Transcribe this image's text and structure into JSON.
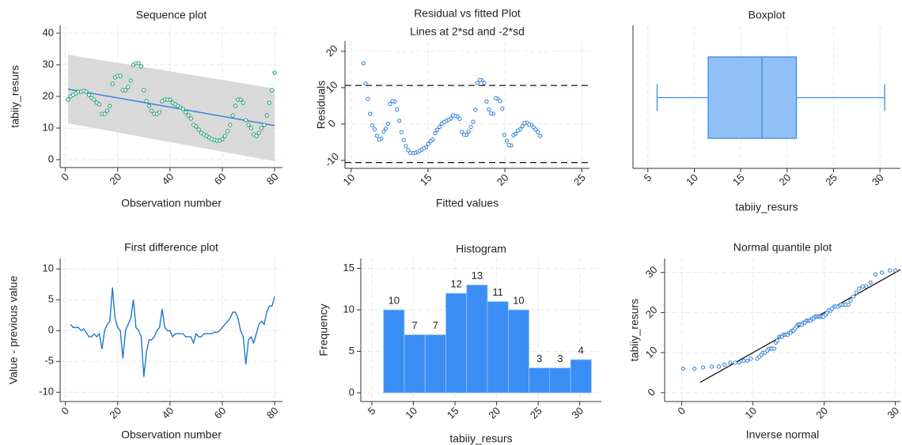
{
  "chart_data": [
    {
      "type": "scatter",
      "title": "Sequence plot",
      "xlabel": "Observation number",
      "ylabel": "tabiiy_resurs",
      "x": [
        1,
        2,
        3,
        4,
        5,
        6,
        7,
        8,
        9,
        10,
        11,
        12,
        13,
        14,
        15,
        16,
        17,
        18,
        19,
        20,
        21,
        22,
        23,
        24,
        25,
        26,
        27,
        28,
        29,
        30,
        31,
        32,
        33,
        34,
        35,
        36,
        37,
        38,
        39,
        40,
        41,
        42,
        43,
        44,
        45,
        46,
        47,
        48,
        49,
        50,
        51,
        52,
        53,
        54,
        55,
        56,
        57,
        58,
        59,
        60,
        61,
        62,
        63,
        64,
        65,
        66,
        67,
        68,
        69,
        70,
        71,
        72,
        73,
        74,
        75,
        76,
        77,
        78,
        79,
        80
      ],
      "values": [
        19,
        20,
        20.5,
        21,
        21.5,
        21.5,
        21.8,
        21.5,
        20.5,
        19.5,
        19,
        18,
        17.5,
        14.5,
        14.5,
        15.5,
        17,
        24,
        26,
        26.5,
        26.5,
        22,
        22,
        23,
        25,
        30,
        30.5,
        30.5,
        29.5,
        22,
        18.5,
        17,
        15.5,
        14.5,
        14.5,
        15,
        18.5,
        19,
        19,
        19,
        18,
        17.5,
        17,
        16.5,
        16,
        15,
        14,
        13,
        11,
        10.5,
        9.5,
        8.5,
        8,
        7.5,
        7,
        6.5,
        6.3,
        6,
        6,
        6.5,
        7.5,
        9,
        11,
        14,
        17,
        19,
        19,
        18,
        12.5,
        11,
        10,
        8,
        7.5,
        8.5,
        10,
        11,
        14,
        18,
        22,
        27.5
      ],
      "color": "#1a9e6e",
      "fit_line": {
        "x": [
          1,
          80
        ],
        "values": [
          22.3,
          10.8
        ],
        "color": "#2a7fdc"
      },
      "ci_band": {
        "x": [
          1,
          80
        ],
        "upper": [
          33.2,
          22.5
        ],
        "lower": [
          11.5,
          -0.5
        ],
        "color": "#d9d9d9"
      },
      "xlim": [
        -2,
        83
      ],
      "ylim": [
        -2.5,
        42.5
      ],
      "xticks": [
        0,
        20,
        40,
        60,
        80
      ],
      "yticks": [
        0,
        10,
        20,
        30,
        40
      ],
      "grid": true
    },
    {
      "type": "scatter",
      "title": "Residual vs fitted Plot",
      "subtitle": "Lines at 2*sd and -2*sd",
      "xlabel": "Fitted values",
      "ylabel": "Residuals",
      "x": [
        22.3,
        22.15,
        22.0,
        21.86,
        21.72,
        21.57,
        21.43,
        21.28,
        21.14,
        20.99,
        20.84,
        20.7,
        20.55,
        20.41,
        20.26,
        20.12,
        19.97,
        19.83,
        19.68,
        19.53,
        19.39,
        19.24,
        19.1,
        18.95,
        18.81,
        18.66,
        18.51,
        18.37,
        18.22,
        18.08,
        17.93,
        17.79,
        17.64,
        17.5,
        17.35,
        17.2,
        17.06,
        16.91,
        16.77,
        16.62,
        16.48,
        16.33,
        16.18,
        16.04,
        15.89,
        15.75,
        15.6,
        15.46,
        15.31,
        15.17,
        15.02,
        14.87,
        14.73,
        14.58,
        14.44,
        14.29,
        14.15,
        14.0,
        13.85,
        13.71,
        13.56,
        13.42,
        13.27,
        13.13,
        12.98,
        12.84,
        12.69,
        12.54,
        12.4,
        12.25,
        12.11,
        11.96,
        11.82,
        11.67,
        11.53,
        11.38,
        11.23,
        11.09,
        10.94,
        10.8
      ],
      "values": [
        -3.3,
        -2.2,
        -1.5,
        -0.9,
        -0.2,
        -0.1,
        0.4,
        0.2,
        -0.6,
        -1.5,
        -1.8,
        -2.7,
        -3.1,
        -5.9,
        -5.8,
        -4.6,
        -3.0,
        4.2,
        6.3,
        7.0,
        7.1,
        2.8,
        2.9,
        4.0,
        6.2,
        11.3,
        12.0,
        12.1,
        11.3,
        3.9,
        0.6,
        -0.8,
        -2.1,
        -3.0,
        -2.9,
        -2.2,
        1.4,
        2.1,
        2.2,
        2.4,
        1.5,
        1.2,
        0.8,
        0.5,
        0.1,
        -0.8,
        -1.6,
        -2.5,
        -4.3,
        -4.7,
        -5.5,
        -6.4,
        -6.7,
        -7.1,
        -7.4,
        -7.8,
        -7.9,
        -8.0,
        -7.9,
        -7.2,
        -6.1,
        -4.4,
        -2.3,
        0.9,
        4.0,
        6.2,
        6.3,
        5.5,
        0.1,
        -1.3,
        -2.1,
        -4.0,
        -4.3,
        -3.2,
        -1.5,
        -0.4,
        2.8,
        6.9,
        11.1,
        16.7
      ],
      "color": "#2d7fd8",
      "reference_lines": [
        10.6,
        -10.6
      ],
      "xlim": [
        9.6,
        25.5
      ],
      "ylim": [
        -12.2,
        22.8
      ],
      "xticks": [
        10,
        15,
        20,
        25
      ],
      "yticks": [
        -10,
        0,
        10,
        20
      ],
      "grid": true
    },
    {
      "type": "box",
      "title": "Boxplot",
      "xlabel": "tabiiy_resurs",
      "whisker_low": 6,
      "q1": 11.5,
      "median": 17.3,
      "q3": 21,
      "whisker_high": 30.5,
      "color": "#90c0f5",
      "edge_color": "#3d8be0",
      "xlim": [
        3.4,
        32.2
      ],
      "xticks": [
        5,
        10,
        15,
        20,
        25,
        30
      ],
      "grid": true
    },
    {
      "type": "line",
      "title": "First difference plot",
      "xlabel": "Observation number",
      "ylabel": "Value - previous value",
      "x": [
        2,
        3,
        4,
        5,
        6,
        7,
        8,
        9,
        10,
        11,
        12,
        13,
        14,
        15,
        16,
        17,
        18,
        19,
        20,
        21,
        22,
        23,
        24,
        25,
        26,
        27,
        28,
        29,
        30,
        31,
        32,
        33,
        34,
        35,
        36,
        37,
        38,
        39,
        40,
        41,
        42,
        43,
        44,
        45,
        46,
        47,
        48,
        49,
        50,
        51,
        52,
        53,
        54,
        55,
        56,
        57,
        58,
        59,
        60,
        61,
        62,
        63,
        64,
        65,
        66,
        67,
        68,
        69,
        70,
        71,
        72,
        73,
        74,
        75,
        76,
        77,
        78,
        79,
        80
      ],
      "values": [
        1,
        0.5,
        0.5,
        0.5,
        0,
        0.3,
        -0.3,
        -1,
        -1,
        -0.5,
        -1,
        -0.5,
        -3,
        0,
        1,
        1.5,
        7,
        2,
        0.5,
        0,
        -4.5,
        0,
        1,
        2,
        5,
        0.5,
        0,
        -1,
        -7.5,
        -3.5,
        -1.5,
        -1.5,
        -1,
        0,
        0.5,
        3.5,
        0.5,
        0,
        0,
        -1,
        -0.5,
        -0.5,
        -0.5,
        -0.5,
        -1,
        -1,
        -1,
        -2,
        -0.5,
        -1,
        -1,
        -0.5,
        -0.5,
        -0.5,
        -0.5,
        -0.2,
        -0.3,
        0,
        0.5,
        1,
        1.5,
        2,
        3,
        3,
        2,
        0,
        -1,
        -5.5,
        -1.5,
        -1,
        -2,
        -0.5,
        1,
        1.5,
        1,
        3,
        4,
        4,
        5.5
      ],
      "color": "#1f77d4",
      "xlim": [
        -2,
        83
      ],
      "ylim": [
        -11.5,
        11.7
      ],
      "xticks": [
        0,
        20,
        40,
        60,
        80
      ],
      "yticks": [
        -10,
        -5,
        0,
        5,
        10
      ],
      "grid": true
    },
    {
      "type": "histogram",
      "title": "Histogram",
      "xlabel": "tabiiy_resurs",
      "ylabel": "Frequency",
      "bins": [
        6.4,
        8.9,
        11.4,
        13.9,
        16.4,
        18.9,
        21.4,
        23.9,
        26.4,
        28.9,
        31.4
      ],
      "values": [
        10,
        7,
        7,
        12,
        13,
        11,
        10,
        3,
        3,
        4
      ],
      "color": "#3a8ef6",
      "data_labels": true,
      "xlim": [
        3.67,
        32.6
      ],
      "ylim": [
        -1.05,
        16.2
      ],
      "xticks": [
        5,
        10,
        15,
        20,
        25,
        30
      ],
      "yticks": [
        0,
        5,
        10,
        15
      ],
      "grid": true
    },
    {
      "type": "scatter",
      "title": "Normal quantile plot",
      "xlabel": "Inverse normal",
      "ylabel": "tabiiy_resurs",
      "x": [
        0.2,
        1.8,
        3.0,
        4.2,
        5.2,
        6.0,
        6.8,
        7.5,
        8.1,
        8.7,
        9.2,
        9.7,
        10.6,
        10.9,
        11.2,
        11.4,
        11.7,
        12.0,
        12.2,
        12.5,
        12.7,
        13.0,
        13.2,
        13.4,
        13.7,
        13.9,
        14.1,
        14.3,
        14.5,
        14.7,
        14.9,
        15.1,
        15.3,
        15.5,
        15.7,
        15.9,
        16.1,
        16.3,
        16.5,
        16.7,
        16.9,
        17.1,
        17.3,
        17.5,
        17.7,
        17.9,
        18.1,
        18.3,
        18.5,
        18.7,
        18.9,
        19.1,
        19.3,
        19.5,
        19.7,
        19.9,
        20.2,
        20.4,
        20.6,
        20.9,
        21.1,
        21.4,
        21.6,
        21.9,
        22.2,
        22.4,
        22.7,
        23.0,
        23.4,
        23.7,
        24.1,
        24.5,
        24.9,
        25.4,
        25.9,
        26.5,
        27.2,
        28.1,
        29.2,
        30.0
      ],
      "values": [
        6,
        6,
        6.3,
        6.5,
        6.5,
        7,
        7.5,
        7.5,
        7.5,
        8,
        8,
        8.5,
        8.5,
        9,
        9.5,
        10,
        10,
        10.5,
        11,
        11,
        11,
        11,
        12.5,
        13,
        14,
        14,
        14,
        14.5,
        14.5,
        14.5,
        14.5,
        15,
        15,
        15.5,
        15.5,
        16,
        16.5,
        17,
        17,
        17,
        17,
        17.5,
        17.5,
        18,
        18,
        18,
        18,
        18.5,
        18.5,
        19,
        19,
        19,
        19,
        19,
        19,
        19,
        19.5,
        20,
        20.5,
        20.5,
        21,
        21.5,
        21.5,
        21.5,
        21.8,
        22,
        22,
        22,
        22,
        23,
        24,
        25,
        26,
        26.5,
        26.5,
        27.5,
        29.5,
        30,
        30.5,
        30.5
      ],
      "color": "#2d7fd8",
      "reference_line": {
        "x": [
          2.6,
          31.5
        ],
        "values": [
          2.6,
          31.5
        ],
        "color": "#000000"
      },
      "xlim": [
        -2.4,
        30.7
      ],
      "ylim": [
        -2.2,
        33.5
      ],
      "xticks": [
        0,
        10,
        20,
        30
      ],
      "yticks": [
        0,
        10,
        20,
        30
      ],
      "grid": true
    }
  ]
}
